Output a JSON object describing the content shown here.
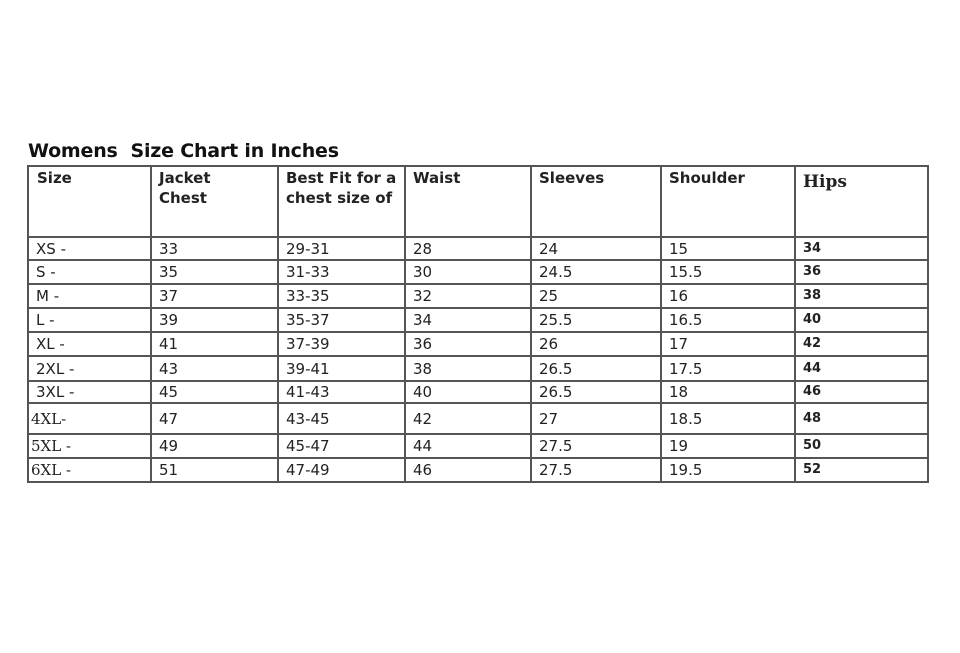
{
  "title": "Womens  Size Chart in Inches",
  "table": {
    "headers": [
      "Size",
      "Jacket Chest",
      "Best Fit for a chest size of",
      "Waist",
      "Sleeves",
      "Shoulder",
      "Hips"
    ],
    "rows": [
      [
        "XS -",
        "33",
        "29-31",
        "28",
        "24",
        "15",
        "34"
      ],
      [
        "S -",
        "35",
        "31-33",
        "30",
        "24.5",
        "15.5",
        "36"
      ],
      [
        "M -",
        "37",
        "33-35",
        "32",
        "25",
        "16",
        "38"
      ],
      [
        "L -",
        "39",
        "35-37",
        "34",
        "25.5",
        "16.5",
        "40"
      ],
      [
        "XL -",
        "41",
        "37-39",
        "36",
        "26",
        "17",
        "42"
      ],
      [
        "2XL -",
        "43",
        "39-41",
        "38",
        "26.5",
        "17.5",
        "44"
      ],
      [
        "3XL -",
        "45",
        "41-43",
        "40",
        "26.5",
        "18",
        "46"
      ],
      [
        "4XL-",
        "47",
        "43-45",
        "42",
        "27",
        "18.5",
        "48"
      ],
      [
        "5XL -",
        "49",
        "45-47",
        "44",
        "27.5",
        "19",
        "50"
      ],
      [
        "6XL -",
        "51",
        "47-49",
        "46",
        "27.5",
        "19.5",
        "52"
      ]
    ]
  }
}
